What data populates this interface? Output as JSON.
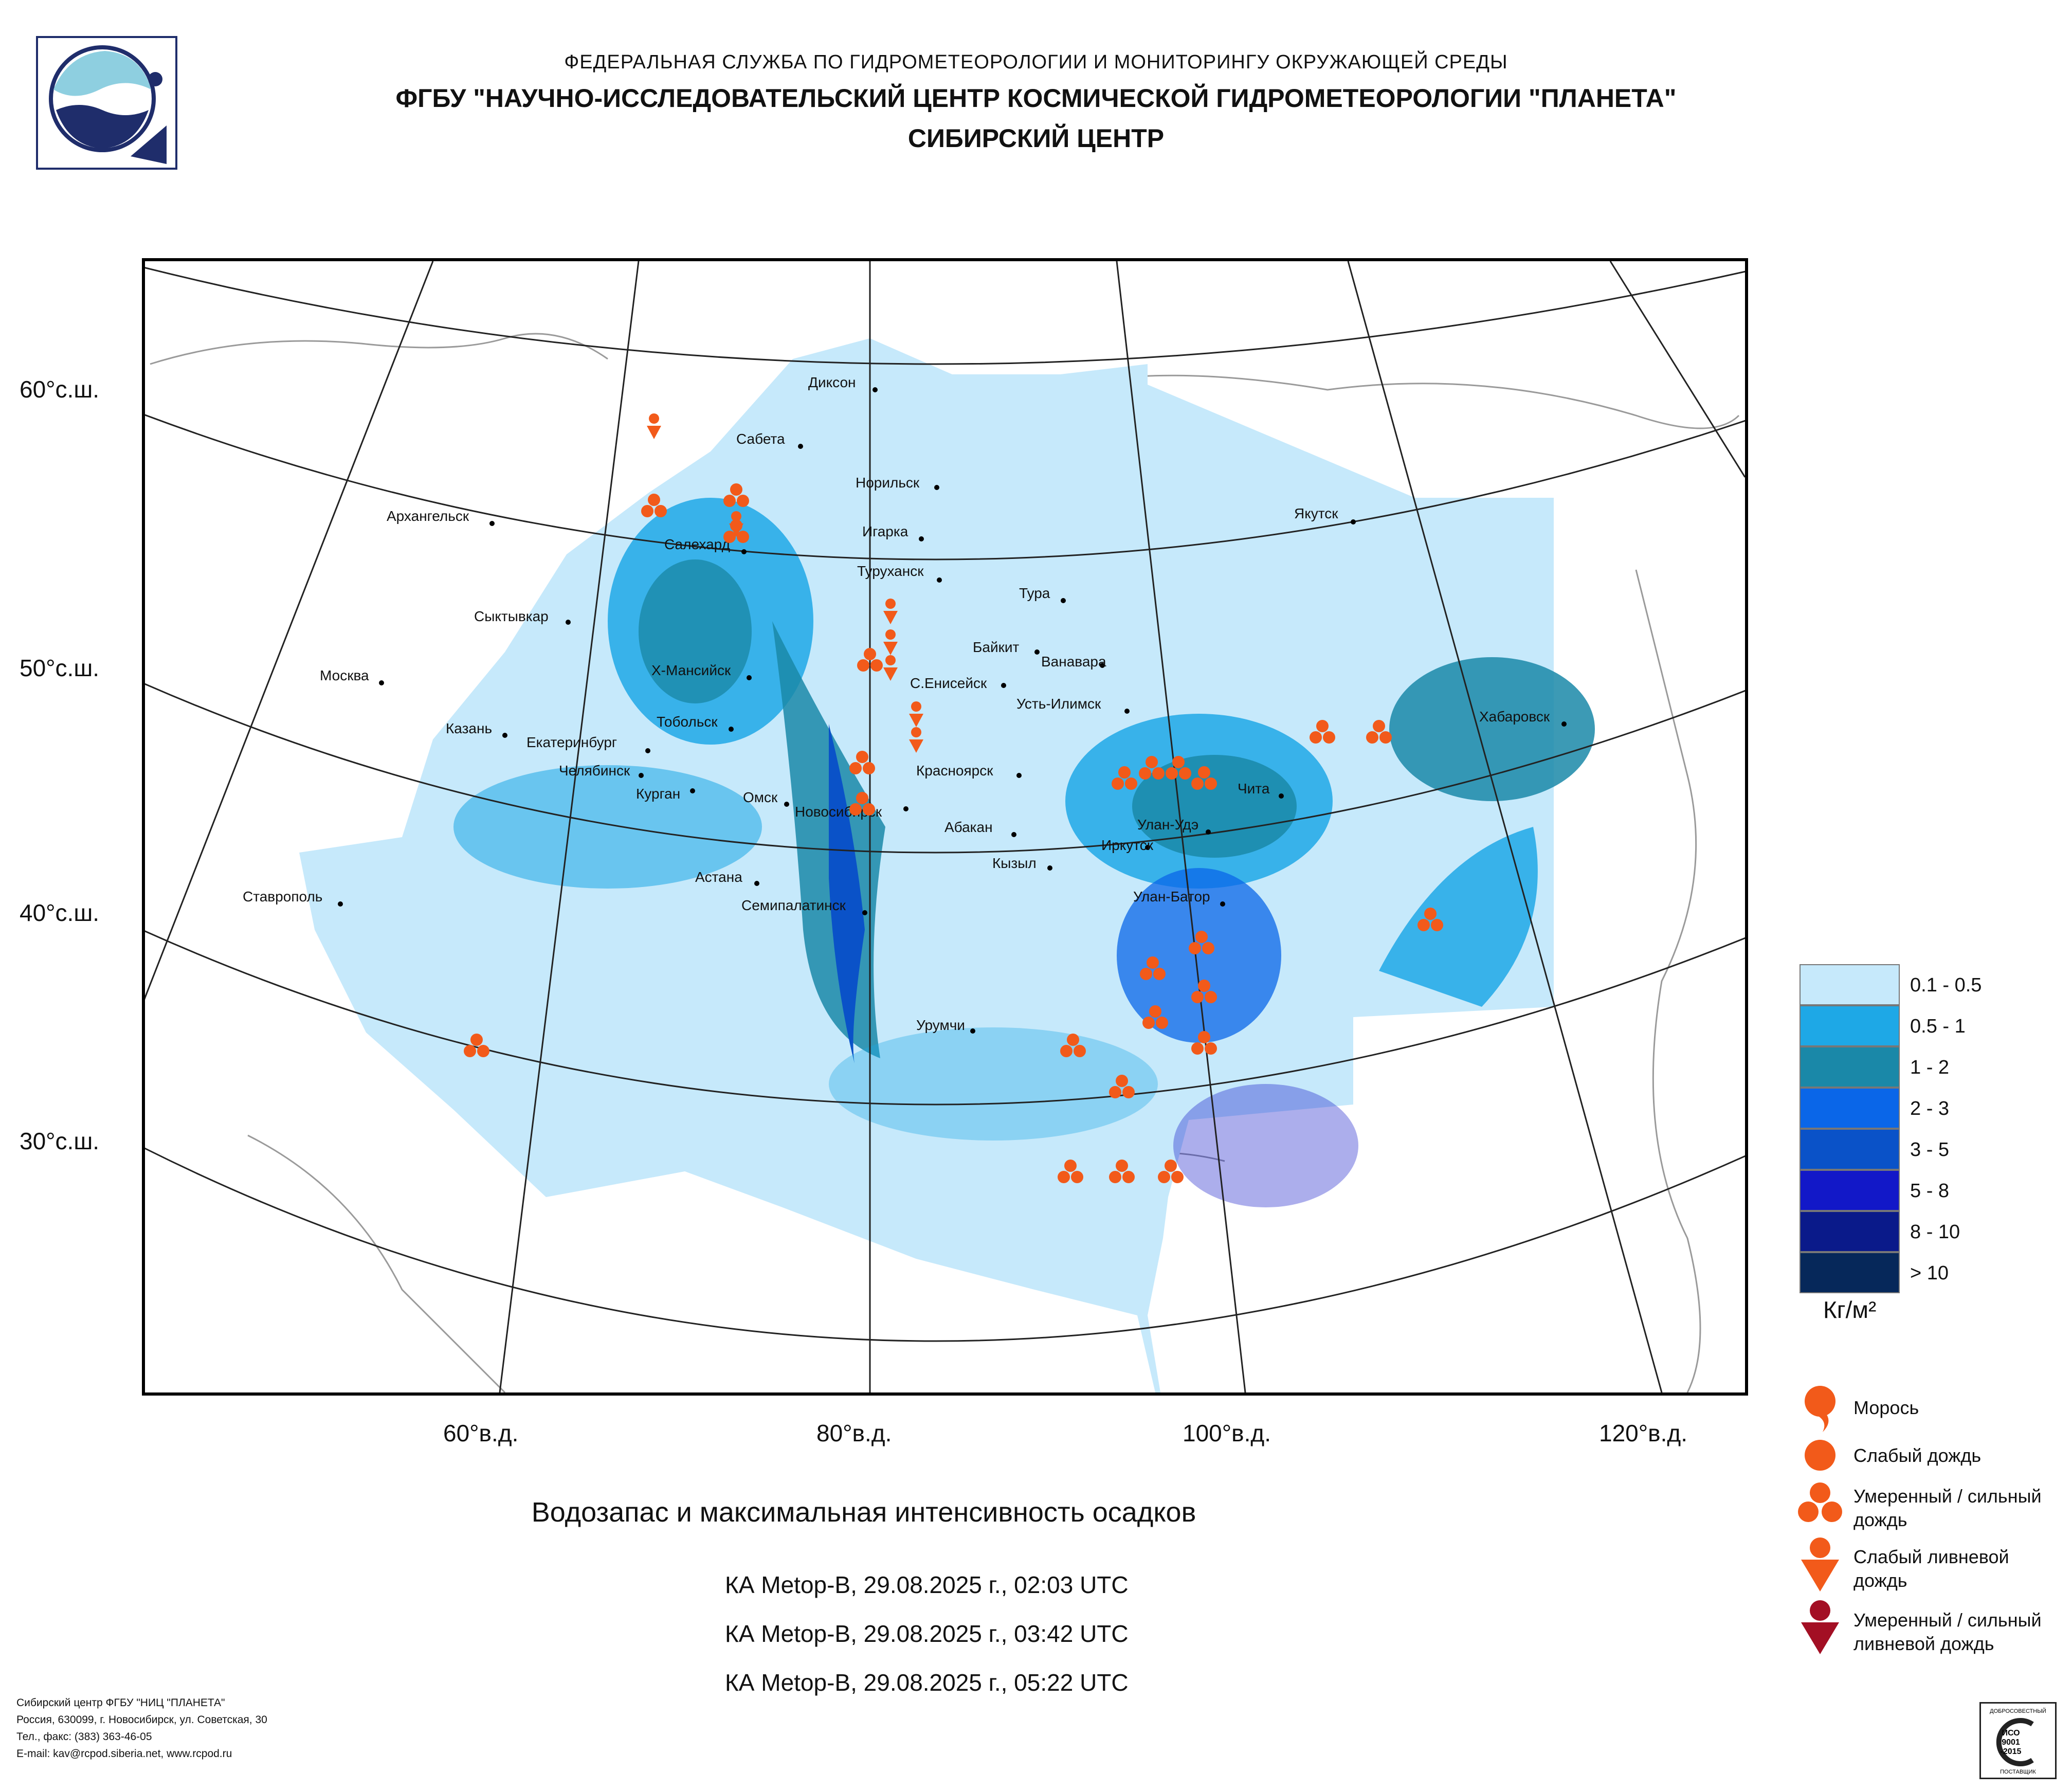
{
  "header": {
    "line1": "ФЕДЕРАЛЬНАЯ СЛУЖБА ПО ГИДРОМЕТЕОРОЛОГИИ И МОНИТОРИНГУ ОКРУЖАЮЩЕЙ СРЕДЫ",
    "line2": "ФГБУ \"НАУЧНО-ИССЛЕДОВАТЕЛЬСКИЙ ЦЕНТР КОСМИЧЕСКОЙ ГИДРОМЕТЕОРОЛОГИИ \"ПЛАНЕТА\"",
    "line3": "СИБИРСКИЙ ЦЕНТР"
  },
  "map": {
    "lat_labels": [
      "60°с.ш.",
      "50°с.ш.",
      "40°с.ш.",
      "30°с.ш."
    ],
    "lon_labels": [
      "60°в.д.",
      "80°в.д.",
      "100°в.д.",
      "120°в.д."
    ],
    "cities": [
      "Диксон",
      "Сабета",
      "Норильск",
      "Игарка",
      "Туруханск",
      "Салехард",
      "Архангельск",
      "Сыктывкар",
      "Москва",
      "Х-Мансийск",
      "Тобольск",
      "Казань",
      "Екатеринбург",
      "Челябинск",
      "Курган",
      "Омск",
      "Новосибирск",
      "Красноярск",
      "С.Енисейск",
      "Байкит",
      "Ванавара",
      "Тура",
      "Усть-Илимск",
      "Абакан",
      "Кызыл",
      "Иркутск",
      "Улан-Удэ",
      "Чита",
      "Якутск",
      "Хабаровск",
      "Улан-Батор",
      "Астана",
      "Семипалатинск",
      "Урумчи",
      "Ставрополь"
    ]
  },
  "legend": {
    "ranges": [
      {
        "label": "0.1 - 0.5",
        "color": "#c6e9fb"
      },
      {
        "label": "0.5 - 1",
        "color": "#1ea8e6"
      },
      {
        "label": "1 - 2",
        "color": "#1a88a8"
      },
      {
        "label": "2 - 3",
        "color": "#0a66e8"
      },
      {
        "label": "3 - 5",
        "color": "#0a52c8"
      },
      {
        "label": "5 - 8",
        "color": "#1218c8"
      },
      {
        "label": "8 - 10",
        "color": "#0a1a8a"
      },
      {
        "label": "> 10",
        "color": "#06285a"
      }
    ],
    "unit": "Кг/м²",
    "symbols": [
      {
        "label": "Морось",
        "icon": "drizzle-icon"
      },
      {
        "label": "Слабый дождь",
        "icon": "light-rain-icon"
      },
      {
        "label": "Умеренный / сильный дождь",
        "icon": "heavy-rain-icon"
      },
      {
        "label": "Слабый ливневой дождь",
        "icon": "light-shower-icon"
      },
      {
        "label": "Умеренный / сильный ливневой дождь",
        "icon": "heavy-shower-icon"
      }
    ]
  },
  "title": "Водозапас и максимальная интенсивность осадков",
  "satellites": [
    "КА Metop-B, 29.08.2025 г., 02:03 UTC",
    "КА Metop-B, 29.08.2025 г., 03:42 UTC",
    "КА Metop-B, 29.08.2025 г., 05:22 UTC"
  ],
  "footer": [
    "Сибирский центр ФГБУ \"НИЦ \"ПЛАНЕТА\"",
    "Россия, 630099, г. Новосибирск, ул. Советская, 30",
    "Тел., факс: (383) 363-46-05",
    "E-mail: kav@rcpod.siberia.net, www.rcpod.ru"
  ],
  "certificate": [
    "ДОБРОСОВЕСТНЫЙ",
    "ИСО",
    "9001",
    "-2015",
    "ПОСТАВЩИК"
  ]
}
